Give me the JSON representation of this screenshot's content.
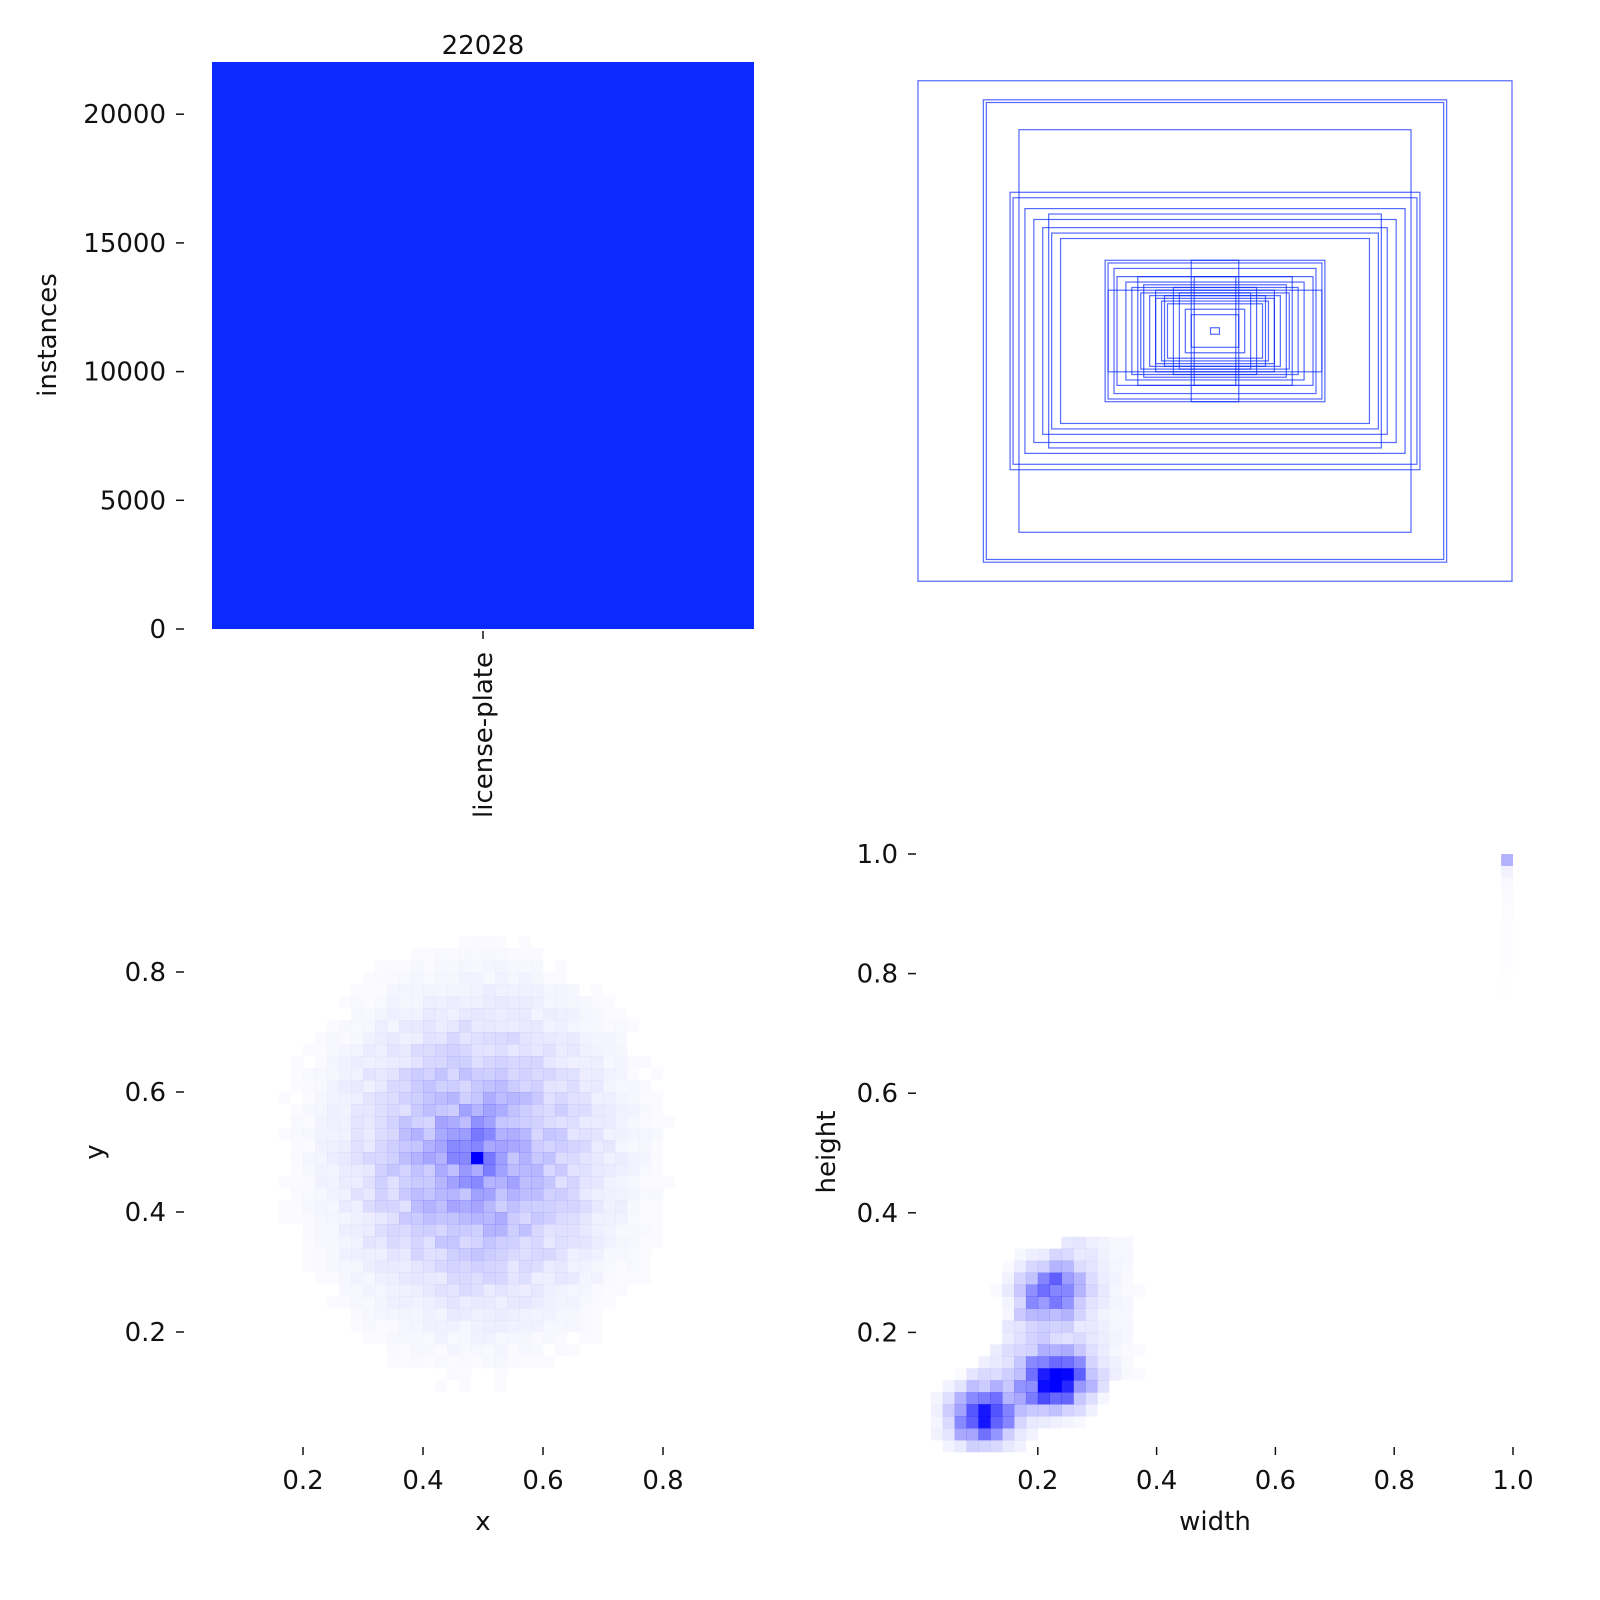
{
  "chart_data": [
    {
      "type": "bar",
      "categories": [
        "license-plate"
      ],
      "values": [
        22028
      ],
      "value_labels": [
        "22028"
      ],
      "ylabel": "instances",
      "ylim": [
        0,
        22028
      ],
      "yticks": [
        0,
        5000,
        10000,
        15000,
        20000
      ],
      "color": "#0a2aff",
      "grid": false
    },
    {
      "type": "scatter",
      "subtype": "box-overlay",
      "description_units": "normalized width/height boxes centered at 0.5,0.5",
      "boxes": [
        [
          1.0,
          0.92
        ],
        [
          0.78,
          0.85
        ],
        [
          0.77,
          0.84
        ],
        [
          0.66,
          0.74
        ],
        [
          0.69,
          0.51
        ],
        [
          0.68,
          0.49
        ],
        [
          0.64,
          0.45
        ],
        [
          0.61,
          0.41
        ],
        [
          0.58,
          0.38
        ],
        [
          0.55,
          0.36
        ],
        [
          0.52,
          0.34
        ],
        [
          0.56,
          0.43
        ],
        [
          0.37,
          0.26
        ],
        [
          0.36,
          0.25
        ],
        [
          0.34,
          0.23
        ],
        [
          0.36,
          0.15
        ],
        [
          0.33,
          0.2
        ],
        [
          0.3,
          0.18
        ],
        [
          0.28,
          0.16
        ],
        [
          0.25,
          0.14
        ],
        [
          0.22,
          0.13
        ],
        [
          0.2,
          0.12
        ],
        [
          0.18,
          0.11
        ],
        [
          0.16,
          0.1
        ],
        [
          0.08,
          0.26
        ],
        [
          0.07,
          0.2
        ],
        [
          0.14,
          0.16
        ],
        [
          0.12,
          0.14
        ],
        [
          0.26,
          0.2
        ],
        [
          0.24,
          0.17
        ],
        [
          0.2,
          0.15
        ],
        [
          0.17,
          0.13
        ],
        [
          0.1,
          0.08
        ],
        [
          0.08,
          0.06
        ],
        [
          0.015,
          0.012
        ]
      ],
      "color": "#0a2aff"
    },
    {
      "type": "heatmap",
      "xlabel": "x",
      "ylabel": "y",
      "xlim": [
        0.0,
        1.0
      ],
      "ylim": [
        0.0,
        1.0
      ],
      "xticks": [
        0.2,
        0.4,
        0.6,
        0.8
      ],
      "yticks": [
        0.2,
        0.4,
        0.6,
        0.8
      ],
      "peak": [
        0.49,
        0.49
      ],
      "spread": [
        0.13,
        0.15
      ],
      "color": "#0000ff"
    },
    {
      "type": "heatmap",
      "xlabel": "width",
      "ylabel": "height",
      "xlim": [
        0.0,
        1.0
      ],
      "ylim": [
        0.0,
        1.0
      ],
      "xticks": [
        0.2,
        0.4,
        0.6,
        0.8,
        1.0
      ],
      "yticks": [
        0.2,
        0.4,
        0.6,
        0.8,
        1.0
      ],
      "clusters": [
        {
          "x": 0.23,
          "y": 0.12,
          "weight": 1.0
        },
        {
          "x": 0.11,
          "y": 0.06,
          "weight": 0.85
        },
        {
          "x": 0.22,
          "y": 0.27,
          "weight": 0.6
        },
        {
          "x": 0.98,
          "y": 0.98,
          "weight": 0.3
        }
      ],
      "color": "#0000ff"
    }
  ]
}
